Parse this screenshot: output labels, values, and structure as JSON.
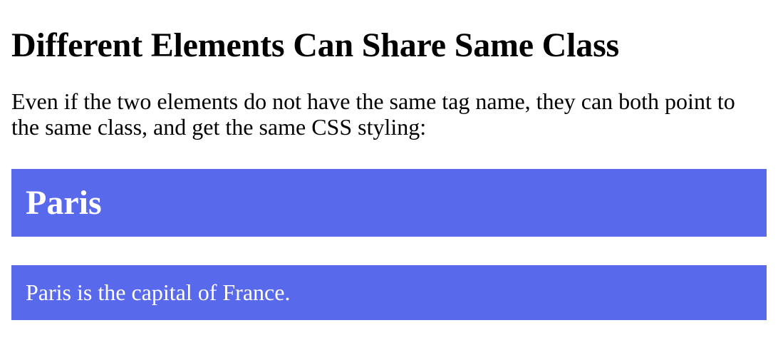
{
  "heading": "Different Elements Can Share Same Class",
  "intro": "Even if the two elements do not have the same tag name, they can both point to the same class, and get the same CSS styling:",
  "city_heading": "Paris",
  "city_paragraph": "Paris is the capital of France.",
  "colors": {
    "city_background": "#5969ec",
    "city_text": "#ffffff",
    "page_text": "#000000",
    "page_background": "#ffffff"
  }
}
